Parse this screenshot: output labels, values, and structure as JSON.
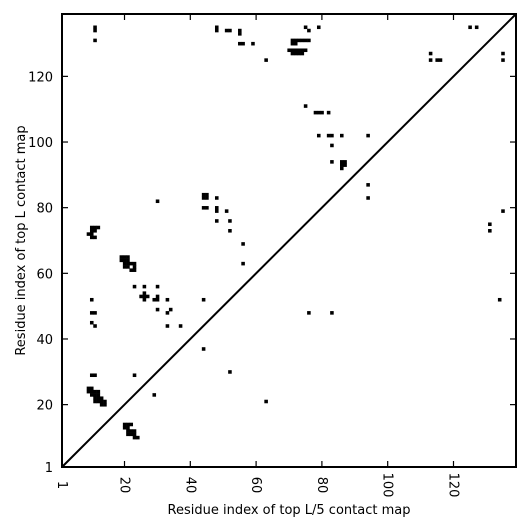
{
  "chart_data": {
    "type": "heatmap",
    "subtype": "contact-map",
    "title": "",
    "xlabel": "Residue index of top L/5 contact map",
    "ylabel": "Residue index of top L contact map",
    "xlim": [
      1,
      139
    ],
    "ylim": [
      1,
      139
    ],
    "x_ticks": [
      1,
      20,
      40,
      60,
      80,
      100,
      120
    ],
    "y_ticks": [
      1,
      20,
      40,
      60,
      80,
      100,
      120
    ],
    "diagonal": true,
    "grid": false,
    "mark_color": "#000000",
    "upper_triangle_contacts": [
      [
        11,
        135
      ],
      [
        11,
        134
      ],
      [
        11,
        131
      ],
      [
        48,
        135
      ],
      [
        48,
        134
      ],
      [
        51,
        134
      ],
      [
        52,
        134
      ],
      [
        55,
        134
      ],
      [
        55,
        133
      ],
      [
        55,
        130
      ],
      [
        56,
        130
      ],
      [
        59,
        130
      ],
      [
        63,
        125
      ],
      [
        71,
        131
      ],
      [
        72,
        131
      ],
      [
        73,
        131
      ],
      [
        74,
        131
      ],
      [
        75,
        131
      ],
      [
        76,
        131
      ],
      [
        71,
        130
      ],
      [
        72,
        130
      ],
      [
        70,
        128
      ],
      [
        71,
        128
      ],
      [
        72,
        128
      ],
      [
        73,
        128
      ],
      [
        74,
        128
      ],
      [
        75,
        128
      ],
      [
        71,
        127
      ],
      [
        72,
        127
      ],
      [
        73,
        127
      ],
      [
        74,
        127
      ],
      [
        75,
        135
      ],
      [
        76,
        134
      ],
      [
        79,
        135
      ],
      [
        113,
        127
      ],
      [
        113,
        125
      ],
      [
        115,
        125
      ],
      [
        116,
        125
      ],
      [
        125,
        135
      ],
      [
        127,
        135
      ],
      [
        135,
        127
      ],
      [
        135,
        125
      ],
      [
        75,
        111
      ],
      [
        78,
        109
      ],
      [
        79,
        109
      ],
      [
        80,
        109
      ],
      [
        82,
        109
      ],
      [
        79,
        102
      ],
      [
        82,
        102
      ],
      [
        83,
        102
      ],
      [
        86,
        102
      ],
      [
        94,
        102
      ],
      [
        83,
        99
      ],
      [
        83,
        94
      ],
      [
        86,
        94
      ],
      [
        87,
        94
      ],
      [
        86,
        93
      ],
      [
        87,
        93
      ],
      [
        86,
        92
      ],
      [
        94,
        87
      ],
      [
        94,
        83
      ]
    ],
    "lower_triangle_contacts": [
      [
        9,
        72
      ],
      [
        10,
        72
      ],
      [
        10,
        73
      ],
      [
        11,
        73
      ],
      [
        10,
        74
      ],
      [
        11,
        74
      ],
      [
        12,
        74
      ],
      [
        10,
        71
      ],
      [
        11,
        71
      ],
      [
        10,
        52
      ],
      [
        10,
        48
      ],
      [
        11,
        48
      ],
      [
        10,
        45
      ],
      [
        11,
        44
      ],
      [
        10,
        29
      ],
      [
        11,
        29
      ],
      [
        9,
        25
      ],
      [
        10,
        25
      ],
      [
        9,
        24
      ],
      [
        10,
        24
      ],
      [
        11,
        24
      ],
      [
        12,
        24
      ],
      [
        10,
        23
      ],
      [
        11,
        23
      ],
      [
        12,
        23
      ],
      [
        11,
        22
      ],
      [
        12,
        22
      ],
      [
        13,
        22
      ],
      [
        11,
        21
      ],
      [
        12,
        21
      ],
      [
        13,
        21
      ],
      [
        14,
        21
      ],
      [
        13,
        20
      ],
      [
        14,
        20
      ],
      [
        19,
        65
      ],
      [
        20,
        65
      ],
      [
        21,
        65
      ],
      [
        19,
        64
      ],
      [
        20,
        64
      ],
      [
        21,
        64
      ],
      [
        20,
        63
      ],
      [
        21,
        63
      ],
      [
        22,
        63
      ],
      [
        23,
        63
      ],
      [
        20,
        62
      ],
      [
        21,
        62
      ],
      [
        23,
        62
      ],
      [
        22,
        61
      ],
      [
        23,
        61
      ],
      [
        23,
        56
      ],
      [
        26,
        56
      ],
      [
        30,
        56
      ],
      [
        26,
        54
      ],
      [
        25,
        53
      ],
      [
        26,
        53
      ],
      [
        27,
        53
      ],
      [
        26,
        52
      ],
      [
        30,
        53
      ],
      [
        29,
        52
      ],
      [
        30,
        52
      ],
      [
        33,
        52
      ],
      [
        30,
        49
      ],
      [
        34,
        49
      ],
      [
        33,
        48
      ],
      [
        33,
        44
      ],
      [
        37,
        44
      ],
      [
        23,
        29
      ],
      [
        29,
        23
      ],
      [
        20,
        14
      ],
      [
        21,
        14
      ],
      [
        22,
        14
      ],
      [
        20,
        13
      ],
      [
        21,
        13
      ],
      [
        21,
        12
      ],
      [
        22,
        12
      ],
      [
        23,
        12
      ],
      [
        21,
        11
      ],
      [
        22,
        11
      ],
      [
        23,
        11
      ],
      [
        23,
        10
      ],
      [
        24,
        10
      ],
      [
        30,
        82
      ],
      [
        44,
        84
      ],
      [
        45,
        84
      ],
      [
        44,
        83
      ],
      [
        45,
        83
      ],
      [
        48,
        83
      ],
      [
        44,
        80
      ],
      [
        45,
        80
      ],
      [
        48,
        80
      ],
      [
        51,
        79
      ],
      [
        48,
        79
      ],
      [
        48,
        76
      ],
      [
        52,
        76
      ],
      [
        52,
        73
      ],
      [
        56,
        69
      ],
      [
        56,
        63
      ],
      [
        44,
        52
      ],
      [
        44,
        37
      ],
      [
        52,
        30
      ],
      [
        63,
        21
      ],
      [
        76,
        48
      ],
      [
        83,
        48
      ],
      [
        131,
        75
      ],
      [
        131,
        73
      ],
      [
        135,
        79
      ],
      [
        134,
        52
      ]
    ]
  }
}
